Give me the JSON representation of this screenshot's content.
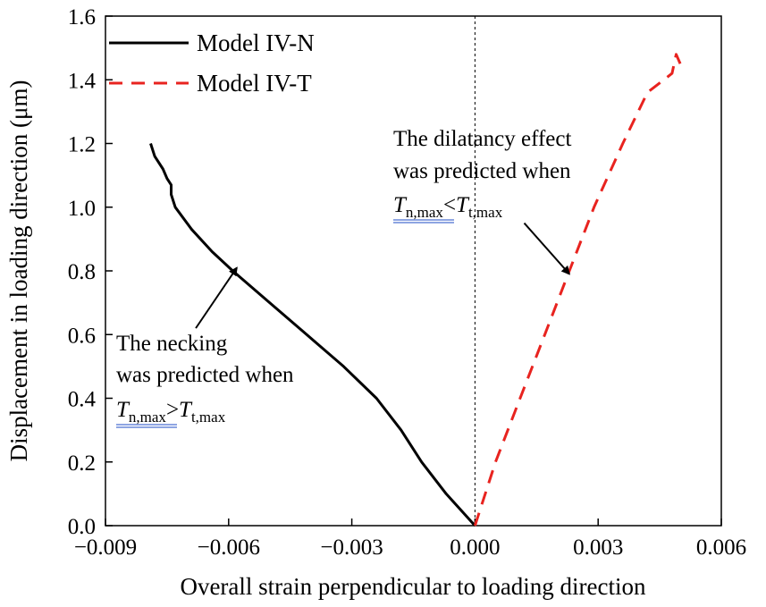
{
  "chart_data": {
    "type": "line",
    "xlabel": "Overall strain perpendicular to loading direction",
    "ylabel": "Displacement in loading direction (μm)",
    "xlim": [
      -0.009,
      0.006
    ],
    "ylim": [
      0.0,
      1.6
    ],
    "x_ticks": [
      -0.009,
      -0.006,
      -0.003,
      0.0,
      0.003,
      0.006
    ],
    "x_tick_labels": [
      "−0.009",
      "−0.006",
      "−0.003",
      "0.000",
      "0.003",
      "0.006"
    ],
    "y_ticks": [
      0.0,
      0.2,
      0.4,
      0.6,
      0.8,
      1.0,
      1.2,
      1.4,
      1.6
    ],
    "y_tick_labels": [
      "0.0",
      "0.2",
      "0.4",
      "0.6",
      "0.8",
      "1.0",
      "1.2",
      "1.4",
      "1.6"
    ],
    "grid": false,
    "legend_position": "top-left",
    "reference_line_x": 0.0,
    "series": [
      {
        "name": "Model IV-N",
        "color": "#000000",
        "style": "solid",
        "points": [
          [
            0.0,
            0.0
          ],
          [
            -0.0007,
            0.1
          ],
          [
            -0.0013,
            0.2
          ],
          [
            -0.0018,
            0.3
          ],
          [
            -0.0024,
            0.4
          ],
          [
            -0.0032,
            0.5
          ],
          [
            -0.0041,
            0.6
          ],
          [
            -0.005,
            0.7
          ],
          [
            -0.0059,
            0.8
          ],
          [
            -0.0064,
            0.86
          ],
          [
            -0.0069,
            0.93
          ],
          [
            -0.0073,
            1.0
          ],
          [
            -0.0074,
            1.04
          ],
          [
            -0.0074,
            1.07
          ],
          [
            -0.0075,
            1.09
          ],
          [
            -0.0076,
            1.12
          ],
          [
            -0.0078,
            1.16
          ],
          [
            -0.0079,
            1.2
          ]
        ]
      },
      {
        "name": "Model IV-T",
        "color": "#e8231f",
        "style": "dashed",
        "points": [
          [
            0.0,
            0.0
          ],
          [
            0.0005,
            0.2
          ],
          [
            0.0011,
            0.4
          ],
          [
            0.0017,
            0.6
          ],
          [
            0.0023,
            0.8
          ],
          [
            0.0029,
            1.0
          ],
          [
            0.0036,
            1.2
          ],
          [
            0.0042,
            1.36
          ],
          [
            0.0048,
            1.42
          ],
          [
            0.0049,
            1.48
          ],
          [
            0.005,
            1.45
          ]
        ]
      }
    ],
    "annotations": [
      {
        "id": "necking",
        "line1": "The necking",
        "line2": "was predicted when",
        "lhs_symbol": "T",
        "lhs_sub": "n,max",
        "op": ">",
        "rhs_symbol": "T",
        "rhs_sub": "t,max",
        "arrow_tip": [
          -0.0058,
          0.81
        ],
        "arrow_tail": [
          -0.0068,
          0.62
        ]
      },
      {
        "id": "dilatancy",
        "line1": "The dilatancy effect",
        "line2": "was predicted when",
        "lhs_symbol": "T",
        "lhs_sub": "n,max",
        "op": "<",
        "rhs_symbol": "T",
        "rhs_sub": "t,max",
        "arrow_tip": [
          0.0023,
          0.79
        ],
        "arrow_tail": [
          0.0012,
          0.95
        ]
      }
    ]
  }
}
